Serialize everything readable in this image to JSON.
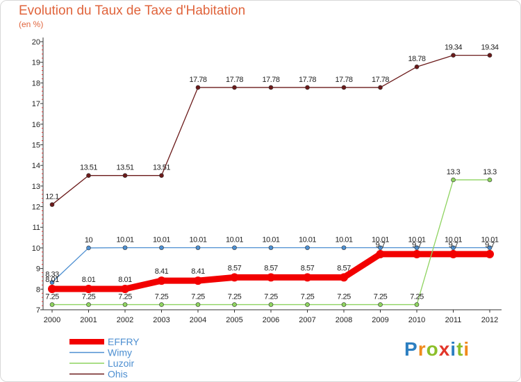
{
  "chart_data": {
    "type": "line",
    "title": "Evolution du Taux de Taxe d'Habitation",
    "subtitle": "(en %)",
    "xlabel": "",
    "ylabel": "",
    "ylim": [
      7,
      20
    ],
    "grid": false,
    "legend_position": "bottom-left",
    "x": [
      "2000",
      "2001",
      "2002",
      "2003",
      "2004",
      "2005",
      "2006",
      "2007",
      "2008",
      "2009",
      "2010",
      "2011",
      "2012"
    ],
    "yticks": [
      "7",
      "8",
      "9",
      "10",
      "11",
      "12",
      "13",
      "14",
      "15",
      "16",
      "17",
      "18",
      "19",
      "20"
    ],
    "series": [
      {
        "name": "Ohis",
        "color": "#6b1a1a",
        "values": [
          12.1,
          13.51,
          13.51,
          13.51,
          17.78,
          17.78,
          17.78,
          17.78,
          17.78,
          17.78,
          18.78,
          19.34,
          19.34
        ],
        "labels": [
          "12.1",
          "13.51",
          "13.51",
          "13.51",
          "17.78",
          "17.78",
          "17.78",
          "17.78",
          "17.78",
          "17.78",
          "18.78",
          "19.34",
          "19.34"
        ]
      },
      {
        "name": "Wimy",
        "color": "#4d8fd1",
        "values": [
          8.33,
          10,
          10.01,
          10.01,
          10.01,
          10.01,
          10.01,
          10.01,
          10.01,
          10.01,
          10.01,
          10.01,
          10.01
        ],
        "labels": [
          "8.33",
          "10",
          "10.01",
          "10.01",
          "10.01",
          "10.01",
          "10.01",
          "10.01",
          "10.01",
          "10.01",
          "10.01",
          "10.01",
          "10.01"
        ]
      },
      {
        "name": "EFFRY",
        "color": "#f20000",
        "values": [
          8.01,
          8.01,
          8.01,
          8.41,
          8.41,
          8.57,
          8.57,
          8.57,
          8.57,
          9.7,
          9.7,
          9.7,
          9.7
        ],
        "labels": [
          "8.01",
          "8.01",
          "8.01",
          "8.41",
          "8.41",
          "8.57",
          "8.57",
          "8.57",
          "8.57",
          "9.7",
          "9.7",
          "9.7",
          "9.7"
        ]
      },
      {
        "name": "Luzoir",
        "color": "#8ed35f",
        "values": [
          7.25,
          7.25,
          7.25,
          7.25,
          7.25,
          7.25,
          7.25,
          7.25,
          7.25,
          7.25,
          7.25,
          13.3,
          13.3
        ],
        "labels": [
          "7.25",
          "7.25",
          "7.25",
          "7.25",
          "7.25",
          "7.25",
          "7.25",
          "7.25",
          "7.25",
          "7.25",
          "7.25",
          "13.3",
          "13.3"
        ]
      }
    ],
    "legend": [
      {
        "name": "EFFRY",
        "color": "#f20000"
      },
      {
        "name": "Wimy",
        "color": "#4d8fd1"
      },
      {
        "name": "Luzoir",
        "color": "#8ed35f"
      },
      {
        "name": "Ohis",
        "color": "#6b1a1a"
      }
    ]
  },
  "logo": {
    "letters": [
      "P",
      "r",
      "o",
      "x",
      "i",
      "t",
      "i"
    ],
    "colors": [
      "#2c7fc1",
      "#f08a1c",
      "#8cbf2a",
      "#e2362a",
      "#2c7fc1",
      "#8cbf2a",
      "#f08a1c"
    ]
  },
  "colors": {
    "title": "#e0643c",
    "axis": "#333333",
    "minor_tick": "#e03030",
    "legend_text": "#4d8fd1"
  }
}
